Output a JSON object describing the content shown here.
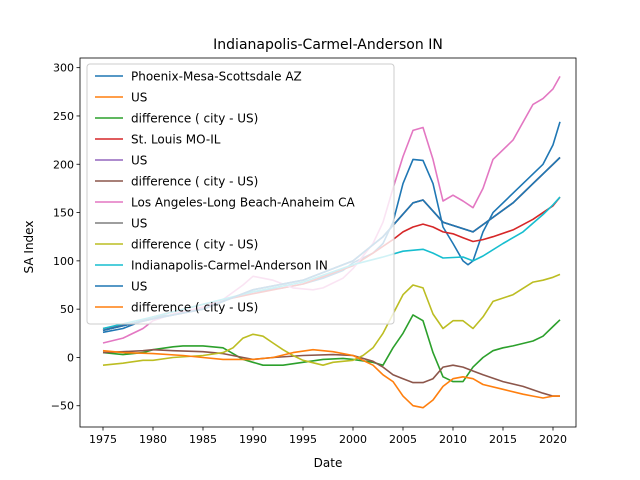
{
  "chart_data": {
    "type": "line",
    "title": "Indianapolis-Carmel-Anderson IN",
    "xlabel": "Date",
    "ylabel": "SA Index",
    "xlim": [
      1972.7,
      2022.3
    ],
    "ylim": [
      -72,
      310
    ],
    "xticks": [
      1975,
      1980,
      1985,
      1990,
      1995,
      2000,
      2005,
      2010,
      2015,
      2020
    ],
    "yticks": [
      -50,
      0,
      50,
      100,
      150,
      200,
      250,
      300
    ],
    "grid": false,
    "legend_position": "upper-left",
    "series": [
      {
        "name": "Phoenix-Mesa-Scottsdale AZ",
        "color": "#1f77b4",
        "points": [
          [
            1975,
            26
          ],
          [
            1977,
            30
          ],
          [
            1979,
            38
          ],
          [
            1980,
            42
          ],
          [
            1982,
            44
          ],
          [
            1985,
            52
          ],
          [
            1988,
            62
          ],
          [
            1990,
            68
          ],
          [
            1993,
            72
          ],
          [
            1995,
            76
          ],
          [
            1997,
            82
          ],
          [
            1999,
            90
          ],
          [
            2000,
            98
          ],
          [
            2002,
            108
          ],
          [
            2003,
            118
          ],
          [
            2004,
            140
          ],
          [
            2005,
            180
          ],
          [
            2006,
            205
          ],
          [
            2007,
            204
          ],
          [
            2008,
            180
          ],
          [
            2009,
            135
          ],
          [
            2010,
            118
          ],
          [
            2011,
            100
          ],
          [
            2011.5,
            96
          ],
          [
            2012,
            100
          ],
          [
            2013,
            130
          ],
          [
            2014,
            150
          ],
          [
            2016,
            170
          ],
          [
            2018,
            190
          ],
          [
            2019,
            200
          ],
          [
            2020,
            220
          ],
          [
            2020.7,
            244
          ]
        ]
      },
      {
        "name": "US",
        "color": "#ff7f0e",
        "points": [
          [
            1975,
            28
          ],
          [
            1980,
            40
          ],
          [
            1985,
            50
          ],
          [
            1990,
            70
          ],
          [
            1995,
            80
          ],
          [
            2000,
            100
          ],
          [
            2003,
            125
          ],
          [
            2006,
            160
          ],
          [
            2007,
            163
          ],
          [
            2009,
            140
          ],
          [
            2012,
            130
          ],
          [
            2014,
            145
          ],
          [
            2016,
            160
          ],
          [
            2018,
            180
          ],
          [
            2020,
            200
          ],
          [
            2020.7,
            207
          ]
        ]
      },
      {
        "name": "difference ( city - US)",
        "color": "#2ca02c",
        "points": [
          [
            1975,
            5
          ],
          [
            1977,
            3
          ],
          [
            1979,
            5
          ],
          [
            1980,
            8
          ],
          [
            1982,
            11
          ],
          [
            1983,
            12
          ],
          [
            1985,
            12
          ],
          [
            1987,
            10
          ],
          [
            1988,
            4
          ],
          [
            1989,
            -2
          ],
          [
            1990,
            -5
          ],
          [
            1991,
            -8
          ],
          [
            1993,
            -8
          ],
          [
            1995,
            -5
          ],
          [
            1997,
            -2
          ],
          [
            1999,
            -1
          ],
          [
            2000,
            -2
          ],
          [
            2002,
            -5
          ],
          [
            2003,
            -8
          ],
          [
            2004,
            10
          ],
          [
            2005,
            25
          ],
          [
            2006,
            44
          ],
          [
            2007,
            38
          ],
          [
            2008,
            5
          ],
          [
            2009,
            -20
          ],
          [
            2010,
            -25
          ],
          [
            2011,
            -25
          ],
          [
            2012,
            -10
          ],
          [
            2013,
            0
          ],
          [
            2014,
            7
          ],
          [
            2015,
            10
          ],
          [
            2016,
            12
          ],
          [
            2018,
            17
          ],
          [
            2019,
            22
          ],
          [
            2020,
            32
          ],
          [
            2020.7,
            39
          ]
        ]
      },
      {
        "name": "St. Louis MO-IL",
        "color": "#d62728",
        "points": [
          [
            1975,
            30
          ],
          [
            1978,
            35
          ],
          [
            1980,
            42
          ],
          [
            1985,
            55
          ],
          [
            1990,
            66
          ],
          [
            1995,
            76
          ],
          [
            2000,
            95
          ],
          [
            2002,
            108
          ],
          [
            2004,
            122
          ],
          [
            2005,
            130
          ],
          [
            2006,
            135
          ],
          [
            2007,
            138
          ],
          [
            2008,
            135
          ],
          [
            2009,
            130
          ],
          [
            2010,
            128
          ],
          [
            2011,
            124
          ],
          [
            2012,
            120
          ],
          [
            2013,
            122
          ],
          [
            2014,
            125
          ],
          [
            2016,
            132
          ],
          [
            2018,
            143
          ],
          [
            2020,
            157
          ],
          [
            2020.7,
            166
          ]
        ]
      },
      {
        "name": "US",
        "color": "#9467bd",
        "points": [
          [
            1975,
            28
          ],
          [
            1980,
            40
          ],
          [
            1985,
            50
          ],
          [
            1990,
            70
          ],
          [
            1995,
            80
          ],
          [
            2000,
            100
          ],
          [
            2003,
            125
          ],
          [
            2006,
            160
          ],
          [
            2007,
            163
          ],
          [
            2009,
            140
          ],
          [
            2012,
            130
          ],
          [
            2014,
            145
          ],
          [
            2016,
            160
          ],
          [
            2018,
            180
          ],
          [
            2020,
            200
          ],
          [
            2020.7,
            207
          ]
        ]
      },
      {
        "name": "difference ( city - US)",
        "color": "#8c564b",
        "points": [
          [
            1975,
            5
          ],
          [
            1977,
            6
          ],
          [
            1979,
            7
          ],
          [
            1980,
            8
          ],
          [
            1982,
            7
          ],
          [
            1985,
            6
          ],
          [
            1987,
            4
          ],
          [
            1989,
            0
          ],
          [
            1990,
            -2
          ],
          [
            1992,
            0
          ],
          [
            1995,
            2
          ],
          [
            1998,
            3
          ],
          [
            2000,
            2
          ],
          [
            2002,
            -4
          ],
          [
            2003,
            -10
          ],
          [
            2004,
            -18
          ],
          [
            2005,
            -22
          ],
          [
            2006,
            -26
          ],
          [
            2007,
            -26
          ],
          [
            2008,
            -22
          ],
          [
            2009,
            -10
          ],
          [
            2010,
            -8
          ],
          [
            2011,
            -10
          ],
          [
            2012,
            -14
          ],
          [
            2013,
            -18
          ],
          [
            2015,
            -25
          ],
          [
            2017,
            -30
          ],
          [
            2019,
            -37
          ],
          [
            2020,
            -40
          ],
          [
            2020.7,
            -40
          ]
        ]
      },
      {
        "name": "Los Angeles-Long Beach-Anaheim CA",
        "color": "#e377c2",
        "points": [
          [
            1975,
            15
          ],
          [
            1977,
            20
          ],
          [
            1979,
            30
          ],
          [
            1980,
            38
          ],
          [
            1982,
            45
          ],
          [
            1985,
            52
          ],
          [
            1987,
            60
          ],
          [
            1989,
            75
          ],
          [
            1990,
            84
          ],
          [
            1992,
            80
          ],
          [
            1994,
            72
          ],
          [
            1996,
            70
          ],
          [
            1997,
            72
          ],
          [
            1999,
            82
          ],
          [
            2000,
            92
          ],
          [
            2002,
            118
          ],
          [
            2003,
            140
          ],
          [
            2004,
            175
          ],
          [
            2005,
            208
          ],
          [
            2006,
            235
          ],
          [
            2007,
            238
          ],
          [
            2008,
            205
          ],
          [
            2009,
            162
          ],
          [
            2010,
            168
          ],
          [
            2011,
            162
          ],
          [
            2012,
            155
          ],
          [
            2013,
            175
          ],
          [
            2014,
            205
          ],
          [
            2016,
            225
          ],
          [
            2018,
            262
          ],
          [
            2019,
            268
          ],
          [
            2020,
            278
          ],
          [
            2020.7,
            291
          ]
        ]
      },
      {
        "name": "US",
        "color": "#7f7f7f",
        "points": [
          [
            1975,
            28
          ],
          [
            1980,
            40
          ],
          [
            1985,
            50
          ],
          [
            1990,
            70
          ],
          [
            1995,
            80
          ],
          [
            2000,
            100
          ],
          [
            2003,
            125
          ],
          [
            2006,
            160
          ],
          [
            2007,
            163
          ],
          [
            2009,
            140
          ],
          [
            2012,
            130
          ],
          [
            2014,
            145
          ],
          [
            2016,
            160
          ],
          [
            2018,
            180
          ],
          [
            2020,
            200
          ],
          [
            2020.7,
            207
          ]
        ]
      },
      {
        "name": "difference ( city - US)",
        "color": "#bcbd22",
        "points": [
          [
            1975,
            -8
          ],
          [
            1977,
            -6
          ],
          [
            1979,
            -3
          ],
          [
            1980,
            -3
          ],
          [
            1982,
            0
          ],
          [
            1985,
            2
          ],
          [
            1987,
            5
          ],
          [
            1988,
            10
          ],
          [
            1989,
            20
          ],
          [
            1990,
            24
          ],
          [
            1991,
            22
          ],
          [
            1992,
            15
          ],
          [
            1993,
            8
          ],
          [
            1994,
            2
          ],
          [
            1995,
            -3
          ],
          [
            1997,
            -8
          ],
          [
            1998,
            -5
          ],
          [
            2000,
            -3
          ],
          [
            2001,
            2
          ],
          [
            2002,
            10
          ],
          [
            2003,
            25
          ],
          [
            2004,
            45
          ],
          [
            2005,
            65
          ],
          [
            2006,
            75
          ],
          [
            2007,
            72
          ],
          [
            2008,
            45
          ],
          [
            2009,
            30
          ],
          [
            2010,
            38
          ],
          [
            2011,
            38
          ],
          [
            2012,
            30
          ],
          [
            2013,
            42
          ],
          [
            2014,
            58
          ],
          [
            2016,
            65
          ],
          [
            2018,
            78
          ],
          [
            2019,
            80
          ],
          [
            2020,
            83
          ],
          [
            2020.7,
            86
          ]
        ]
      },
      {
        "name": "Indianapolis-Carmel-Anderson IN",
        "color": "#17becf",
        "points": [
          [
            1975,
            30
          ],
          [
            1980,
            42
          ],
          [
            1985,
            55
          ],
          [
            1990,
            68
          ],
          [
            1995,
            78
          ],
          [
            2000,
            96
          ],
          [
            2003,
            104
          ],
          [
            2005,
            110
          ],
          [
            2007,
            112
          ],
          [
            2008,
            108
          ],
          [
            2009,
            103
          ],
          [
            2011,
            104
          ],
          [
            2012,
            100
          ],
          [
            2013,
            105
          ],
          [
            2015,
            118
          ],
          [
            2017,
            130
          ],
          [
            2019,
            148
          ],
          [
            2020,
            158
          ],
          [
            2020.7,
            166
          ]
        ]
      },
      {
        "name": "US",
        "color": "#1f77b4",
        "points": [
          [
            1975,
            28
          ],
          [
            1980,
            40
          ],
          [
            1985,
            50
          ],
          [
            1990,
            70
          ],
          [
            1995,
            80
          ],
          [
            2000,
            100
          ],
          [
            2003,
            125
          ],
          [
            2006,
            160
          ],
          [
            2007,
            163
          ],
          [
            2009,
            140
          ],
          [
            2012,
            130
          ],
          [
            2014,
            145
          ],
          [
            2016,
            160
          ],
          [
            2018,
            180
          ],
          [
            2020,
            200
          ],
          [
            2020.7,
            207
          ]
        ]
      },
      {
        "name": "difference ( city - US)",
        "color": "#ff7f0e",
        "points": [
          [
            1975,
            7
          ],
          [
            1977,
            5
          ],
          [
            1980,
            4
          ],
          [
            1983,
            2
          ],
          [
            1985,
            0
          ],
          [
            1987,
            -2
          ],
          [
            1990,
            -2
          ],
          [
            1992,
            0
          ],
          [
            1994,
            5
          ],
          [
            1996,
            8
          ],
          [
            1998,
            6
          ],
          [
            2000,
            2
          ],
          [
            2002,
            -8
          ],
          [
            2003,
            -18
          ],
          [
            2004,
            -25
          ],
          [
            2005,
            -40
          ],
          [
            2006,
            -50
          ],
          [
            2007,
            -52
          ],
          [
            2008,
            -44
          ],
          [
            2009,
            -30
          ],
          [
            2010,
            -22
          ],
          [
            2011,
            -20
          ],
          [
            2012,
            -22
          ],
          [
            2013,
            -28
          ],
          [
            2015,
            -33
          ],
          [
            2017,
            -38
          ],
          [
            2018,
            -40
          ],
          [
            2019,
            -42
          ],
          [
            2020,
            -40
          ],
          [
            2020.7,
            -40
          ]
        ]
      }
    ]
  }
}
